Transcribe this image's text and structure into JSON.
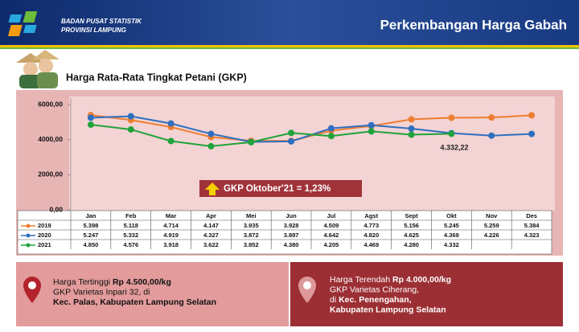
{
  "header": {
    "org": [
      "BADAN PUSAT STATISTIK",
      "PROVINSI LAMPUNG"
    ],
    "title": "Perkembangan Harga Gabah"
  },
  "chart_data": {
    "type": "line",
    "title": "Harga Rata-Rata Tingkat Petani (GKP)",
    "categories": [
      "Jan",
      "Feb",
      "Mar",
      "Apr",
      "Mei",
      "Jun",
      "Jul",
      "Agst",
      "Sept",
      "Okt",
      "Nov",
      "Des"
    ],
    "series": [
      {
        "name": "2019",
        "color": "#ed7d31",
        "values": [
          5398,
          5118,
          4714,
          4147,
          3935,
          3928,
          4509,
          4773,
          5156,
          5245,
          5259,
          5384
        ],
        "value_labels": [
          "5.398",
          "5.118",
          "4.714",
          "4.147",
          "3.935",
          "3.928",
          "4.509",
          "4.773",
          "5.156",
          "5.245",
          "5.259",
          "5.384"
        ]
      },
      {
        "name": "2020",
        "color": "#2e6fc0",
        "values": [
          5247,
          5332,
          4919,
          4327,
          3872,
          3897,
          4642,
          4820,
          4625,
          4369,
          4226,
          4323
        ],
        "value_labels": [
          "5.247",
          "5.332",
          "4.919",
          "4.327",
          "3.872",
          "3.897",
          "4.642",
          "4.820",
          "4.625",
          "4.369",
          "4.226",
          "4.323"
        ]
      },
      {
        "name": "2021",
        "color": "#1fa33a",
        "values": [
          4850,
          4576,
          3918,
          3622,
          3852,
          4380,
          4205,
          4469,
          4280,
          4332,
          null,
          null
        ],
        "value_labels": [
          "4.850",
          "4.576",
          "3.918",
          "3.622",
          "3.852",
          "4.380",
          "4.205",
          "4.469",
          "4.280",
          "4.332",
          null,
          null
        ]
      }
    ],
    "ylim": [
      0,
      6000
    ],
    "yticks": [
      {
        "value": 0,
        "label": "0,00"
      },
      {
        "value": 2000,
        "label": "2000,00"
      },
      {
        "value": 4000,
        "label": "4000,00"
      },
      {
        "value": 6000,
        "label": "6000,00"
      }
    ],
    "annotations": [
      "GKP Oktober'21 = 1,23%",
      "4.332,22"
    ]
  },
  "info_boxes": [
    {
      "lines": [
        [
          {
            "text": "Harga Tertinggi ",
            "bold": false
          },
          {
            "text": "Rp 4.500,00/kg",
            "bold": true
          }
        ],
        [
          {
            "text": "GKP Varietas Inpari 32, di",
            "bold": false
          }
        ],
        [
          {
            "text": "Kec. Palas, Kabupaten Lampung Selatan",
            "bold": true
          }
        ]
      ]
    },
    {
      "lines": [
        [
          {
            "text": "Harga Terendah ",
            "bold": false
          },
          {
            "text": "Rp 4.000,00/kg",
            "bold": true
          }
        ],
        [
          {
            "text": "GKP Varietas Ciherang,",
            "bold": false
          }
        ],
        [
          {
            "text": "di ",
            "bold": false
          },
          {
            "text": "Kec. Penengahan,",
            "bold": true
          }
        ],
        [
          {
            "text": "Kabupaten Lampung Selatan",
            "bold": true
          }
        ]
      ]
    }
  ]
}
